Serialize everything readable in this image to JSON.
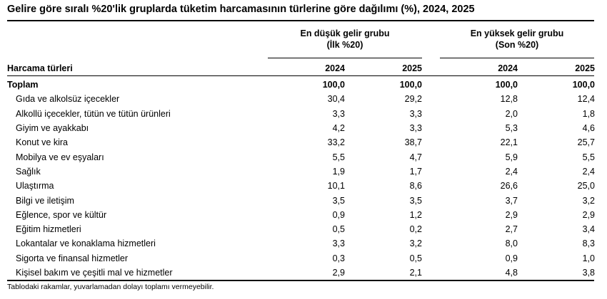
{
  "title": "Gelire göre sıralı %20'lik gruplarda tüketim harcamasının türlerine göre dağılımı (%), 2024, 2025",
  "groups": {
    "low": {
      "line1": "En düşük gelir grubu",
      "line2": "(İlk %20)"
    },
    "high": {
      "line1": "En yüksek gelir grubu",
      "line2": "(Son %20)"
    }
  },
  "columns": {
    "label": "Harcama türleri",
    "low_2024": "2024",
    "low_2025": "2025",
    "high_2024": "2024",
    "high_2025": "2025"
  },
  "rows": [
    {
      "label": "Toplam",
      "total": true,
      "v": [
        "100,0",
        "100,0",
        "100,0",
        "100,0"
      ]
    },
    {
      "label": "Gıda ve alkolsüz içecekler",
      "v": [
        "30,4",
        "29,2",
        "12,8",
        "12,4"
      ]
    },
    {
      "label": "Alkollü içecekler, tütün ve tütün ürünleri",
      "v": [
        "3,3",
        "3,3",
        "2,0",
        "1,8"
      ]
    },
    {
      "label": "Giyim ve ayakkabı",
      "v": [
        "4,2",
        "3,3",
        "5,3",
        "4,6"
      ]
    },
    {
      "label": "Konut ve kira",
      "v": [
        "33,2",
        "38,7",
        "22,1",
        "25,7"
      ]
    },
    {
      "label": "Mobilya ve ev eşyaları",
      "v": [
        "5,5",
        "4,7",
        "5,9",
        "5,5"
      ]
    },
    {
      "label": "Sağlık",
      "v": [
        "1,9",
        "1,7",
        "2,4",
        "2,4"
      ]
    },
    {
      "label": "Ulaştırma",
      "v": [
        "10,1",
        "8,6",
        "26,6",
        "25,0"
      ]
    },
    {
      "label": "Bilgi ve iletişim",
      "v": [
        "3,5",
        "3,5",
        "3,7",
        "3,2"
      ]
    },
    {
      "label": "Eğlence, spor ve kültür",
      "v": [
        "0,9",
        "1,2",
        "2,9",
        "2,9"
      ]
    },
    {
      "label": "Eğitim hizmetleri",
      "v": [
        "0,5",
        "0,2",
        "2,7",
        "3,4"
      ]
    },
    {
      "label": "Lokantalar ve konaklama hizmetleri",
      "v": [
        "3,3",
        "3,2",
        "8,0",
        "8,3"
      ]
    },
    {
      "label": "Sigorta ve finansal hizmetler",
      "v": [
        "0,3",
        "0,5",
        "0,9",
        "1,0"
      ]
    },
    {
      "label": "Kişisel bakım ve çeşitli mal ve hizmetler",
      "v": [
        "2,9",
        "2,1",
        "4,8",
        "3,8"
      ]
    }
  ],
  "footnote": "Tablodaki rakamlar, yuvarlamadan dolayı toplamı vermeyebilir."
}
